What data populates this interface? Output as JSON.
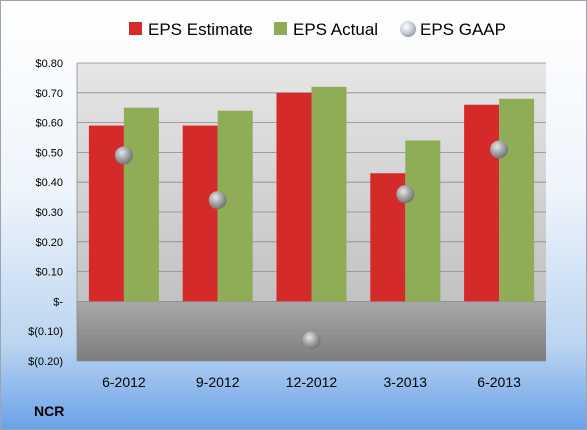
{
  "company": "NCR",
  "chart_data": {
    "type": "bar",
    "categories": [
      "6-2012",
      "9-2012",
      "12-2012",
      "3-2013",
      "6-2013"
    ],
    "series": [
      {
        "name": "EPS Estimate",
        "kind": "bar",
        "color": "#d42a2a",
        "values": [
          0.59,
          0.59,
          0.7,
          0.43,
          0.66
        ]
      },
      {
        "name": "EPS Actual",
        "kind": "bar",
        "color": "#8fac56",
        "values": [
          0.65,
          0.64,
          0.72,
          0.54,
          0.68
        ]
      },
      {
        "name": "EPS GAAP",
        "kind": "marker",
        "color": "#a9a9a9",
        "values": [
          0.49,
          0.34,
          -0.13,
          0.36,
          0.51
        ]
      }
    ],
    "ylim": [
      -0.2,
      0.8
    ],
    "y_ticks": [
      0.8,
      0.7,
      0.6,
      0.5,
      0.4,
      0.3,
      0.2,
      0.1,
      0,
      -0.1,
      -0.2
    ],
    "y_tick_labels": [
      "$0.80",
      "$0.70",
      "$0.60",
      "$0.50",
      "$0.40",
      "$0.30",
      "$0.20",
      "$0.10",
      "$-",
      "$(0.10)",
      "$(0.20)"
    ],
    "grid": true,
    "legend_position": "top"
  }
}
